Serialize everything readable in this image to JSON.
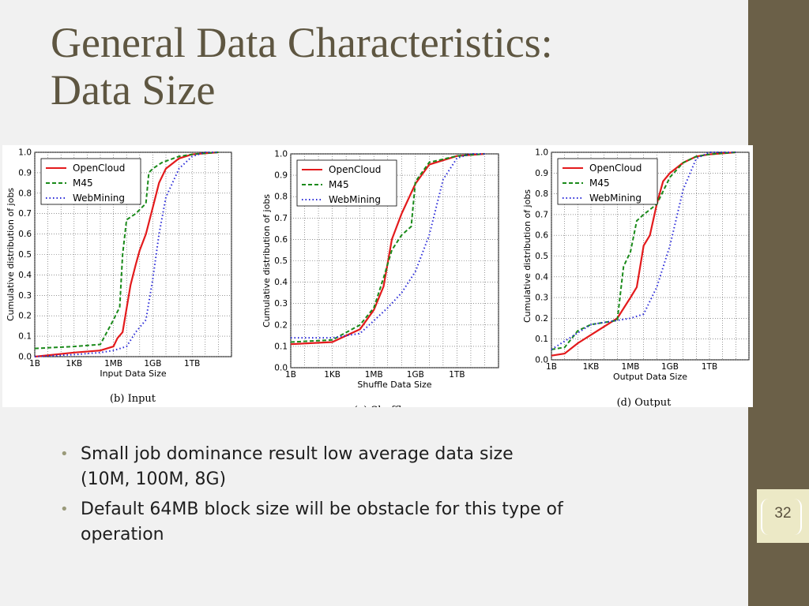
{
  "title": {
    "line1": "General Data Characteristics:",
    "line2": "Data Size"
  },
  "page_number": "32",
  "bullets": [
    {
      "line1": "Small job dominance result low average data size",
      "line2": "(10M, 100M, 8G)"
    },
    {
      "line1": "Default 64MB block size will be obstacle for this type of",
      "line2": "operation"
    }
  ],
  "colors": {
    "opencloud": "#e31a1c",
    "m45": "#1a8a1a",
    "webmining": "#2a2ad8",
    "sidebar": "#6b6048",
    "title": "#5e5641"
  },
  "chart_data": [
    {
      "type": "line",
      "caption": "(b)  Input",
      "xlabel": "Input Data Size",
      "ylabel": "Cumulative distribution of jobs",
      "x_ticks": [
        "1B",
        "1KB",
        "1MB",
        "1GB",
        "1TB"
      ],
      "y_ticks": [
        "0.0",
        "0.1",
        "0.2",
        "0.3",
        "0.4",
        "0.5",
        "0.6",
        "0.7",
        "0.8",
        "0.9",
        "1.0"
      ],
      "xlim": [
        "1B",
        "1PB"
      ],
      "ylim": [
        0,
        1
      ],
      "grid": true,
      "legend": "top-left",
      "series": [
        {
          "name": "OpenCloud",
          "style": "solid",
          "x": [
            "1B",
            "1KB",
            "100KB",
            "1MB",
            "2MB",
            "5MB",
            "20MB",
            "50MB",
            "100MB",
            "300MB",
            "1GB",
            "3GB",
            "10GB",
            "100GB",
            "1TB",
            "100TB"
          ],
          "y": [
            0,
            0.02,
            0.03,
            0.05,
            0.09,
            0.12,
            0.35,
            0.45,
            0.52,
            0.6,
            0.73,
            0.85,
            0.92,
            0.97,
            0.99,
            1.0
          ]
        },
        {
          "name": "M45",
          "style": "dashed",
          "x": [
            "1B",
            "1KB",
            "100KB",
            "1MB",
            "2MB",
            "3MB",
            "5MB",
            "10MB",
            "50MB",
            "300MB",
            "500MB",
            "1GB",
            "5GB",
            "100GB",
            "1TB",
            "100TB"
          ],
          "y": [
            0.04,
            0.05,
            0.06,
            0.18,
            0.22,
            0.24,
            0.5,
            0.67,
            0.7,
            0.75,
            0.9,
            0.92,
            0.95,
            0.98,
            0.99,
            1.0
          ]
        },
        {
          "name": "WebMining",
          "style": "dotted",
          "x": [
            "1B",
            "1KB",
            "100KB",
            "1MB",
            "10MB",
            "50MB",
            "300MB",
            "1GB",
            "3GB",
            "10GB",
            "100GB",
            "1TB",
            "10TB",
            "100TB"
          ],
          "y": [
            0,
            0.01,
            0.02,
            0.03,
            0.05,
            0.12,
            0.18,
            0.38,
            0.6,
            0.78,
            0.92,
            0.98,
            1.0,
            1.0
          ]
        }
      ]
    },
    {
      "type": "line",
      "caption": "(c)  Shuffle",
      "xlabel": "Shuffle Data Size",
      "ylabel": "Cumulative distribution of jobs",
      "x_ticks": [
        "1B",
        "1KB",
        "1MB",
        "1GB",
        "1TB"
      ],
      "y_ticks": [
        "0.0",
        "0.1",
        "0.2",
        "0.3",
        "0.4",
        "0.5",
        "0.6",
        "0.7",
        "0.8",
        "0.9",
        "1.0"
      ],
      "xlim": [
        "1B",
        "1PB"
      ],
      "ylim": [
        0,
        1
      ],
      "grid": true,
      "legend": "top-left",
      "series": [
        {
          "name": "OpenCloud",
          "style": "solid",
          "x": [
            "1B",
            "1KB",
            "100KB",
            "1MB",
            "5MB",
            "20MB",
            "100MB",
            "1GB",
            "10GB",
            "1TB",
            "100TB"
          ],
          "y": [
            0.11,
            0.12,
            0.18,
            0.27,
            0.38,
            0.6,
            0.72,
            0.86,
            0.95,
            0.99,
            1.0
          ]
        },
        {
          "name": "M45",
          "style": "dashed",
          "x": [
            "1B",
            "1KB",
            "100KB",
            "1MB",
            "5MB",
            "20MB",
            "100MB",
            "500MB",
            "1GB",
            "10GB",
            "1TB",
            "100TB"
          ],
          "y": [
            0.12,
            0.13,
            0.2,
            0.28,
            0.42,
            0.55,
            0.62,
            0.66,
            0.87,
            0.96,
            0.99,
            1.0
          ]
        },
        {
          "name": "WebMining",
          "style": "dotted",
          "x": [
            "1B",
            "1KB",
            "100KB",
            "1MB",
            "10MB",
            "100MB",
            "1GB",
            "10GB",
            "100GB",
            "1TB",
            "10TB",
            "100TB"
          ],
          "y": [
            0.14,
            0.14,
            0.16,
            0.22,
            0.28,
            0.35,
            0.45,
            0.62,
            0.88,
            0.98,
            1.0,
            1.0
          ]
        }
      ]
    },
    {
      "type": "line",
      "caption": "(d)  Output",
      "xlabel": "Output Data Size",
      "ylabel": "Cumulative distribution of jobs",
      "x_ticks": [
        "1B",
        "1KB",
        "1MB",
        "1GB",
        "1TB"
      ],
      "y_ticks": [
        "0.0",
        "0.1",
        "0.2",
        "0.3",
        "0.4",
        "0.5",
        "0.6",
        "0.7",
        "0.8",
        "0.9",
        "1.0"
      ],
      "xlim": [
        "1B",
        "1PB"
      ],
      "ylim": [
        0,
        1
      ],
      "grid": true,
      "legend": "top-left",
      "series": [
        {
          "name": "OpenCloud",
          "style": "solid",
          "x": [
            "1B",
            "10B",
            "100B",
            "1KB",
            "100KB",
            "1MB",
            "3MB",
            "10MB",
            "30MB",
            "100MB",
            "300MB",
            "1GB",
            "10GB",
            "100GB",
            "1TB",
            "100TB"
          ],
          "y": [
            0.02,
            0.03,
            0.08,
            0.12,
            0.2,
            0.3,
            0.35,
            0.55,
            0.6,
            0.75,
            0.86,
            0.9,
            0.95,
            0.98,
            0.99,
            1.0
          ]
        },
        {
          "name": "M45",
          "style": "dashed",
          "x": [
            "1B",
            "10B",
            "100B",
            "1KB",
            "100KB",
            "300KB",
            "1MB",
            "3MB",
            "10MB",
            "100MB",
            "1GB",
            "10GB",
            "100GB",
            "1TB",
            "100TB"
          ],
          "y": [
            0.05,
            0.06,
            0.14,
            0.17,
            0.19,
            0.45,
            0.52,
            0.67,
            0.7,
            0.75,
            0.88,
            0.95,
            0.98,
            0.99,
            1.0
          ]
        },
        {
          "name": "WebMining",
          "style": "dotted",
          "x": [
            "1B",
            "1KB",
            "100KB",
            "1MB",
            "10MB",
            "100MB",
            "1GB",
            "10GB",
            "100GB",
            "1TB",
            "10TB",
            "100TB"
          ],
          "y": [
            0.05,
            0.17,
            0.19,
            0.2,
            0.22,
            0.35,
            0.55,
            0.82,
            0.97,
            1.0,
            1.0,
            1.0
          ]
        }
      ]
    }
  ]
}
